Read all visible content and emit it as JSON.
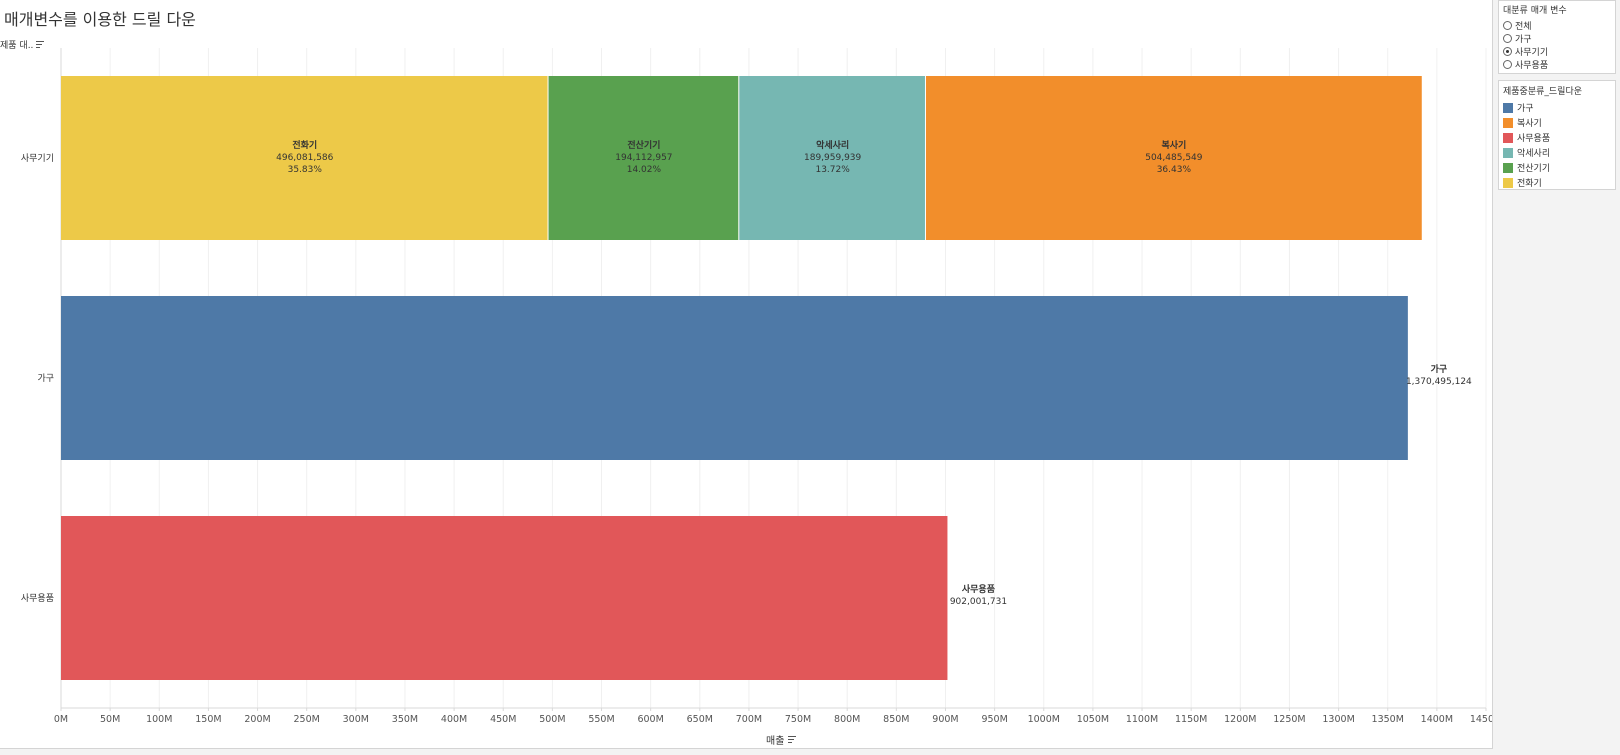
{
  "title": "매개변수를 이용한 드릴 다운",
  "row_header": "제품 대..",
  "x_axis_title": "매출",
  "parameter": {
    "title": "대분류 매개 변수",
    "options": [
      {
        "label": "전체",
        "checked": false
      },
      {
        "label": "가구",
        "checked": false
      },
      {
        "label": "사무기기",
        "checked": true
      },
      {
        "label": "사무용품",
        "checked": false
      }
    ]
  },
  "legend": {
    "title": "제품중분류_드릴다운",
    "items": [
      {
        "label": "가구",
        "color": "#4e79a7"
      },
      {
        "label": "복사기",
        "color": "#f28e2b"
      },
      {
        "label": "사무용품",
        "color": "#e15759"
      },
      {
        "label": "악세사리",
        "color": "#76b7b2"
      },
      {
        "label": "전산기기",
        "color": "#59a14f"
      },
      {
        "label": "전화기",
        "color": "#edc948"
      }
    ]
  },
  "chart_data": {
    "type": "bar",
    "orientation": "horizontal",
    "stacked": true,
    "title": "매개변수를 이용한 드릴 다운",
    "xlabel": "매출",
    "ylabel": "제품 대..",
    "xlim": [
      0,
      1450000000
    ],
    "x_ticks": [
      "0M",
      "50M",
      "100M",
      "150M",
      "200M",
      "250M",
      "300M",
      "350M",
      "400M",
      "450M",
      "500M",
      "550M",
      "600M",
      "650M",
      "700M",
      "750M",
      "800M",
      "850M",
      "900M",
      "950M",
      "1000M",
      "1050M",
      "1100M",
      "1150M",
      "1200M",
      "1250M",
      "1300M",
      "1350M",
      "1400M",
      "1450M"
    ],
    "grid": "vertical",
    "categories": [
      "사무기기",
      "가구",
      "사무용품"
    ],
    "rows": [
      {
        "category": "사무기기",
        "segments": [
          {
            "name": "전화기",
            "value": 496081586,
            "label": "496,081,586",
            "pct": "35.83%",
            "color": "#edc948"
          },
          {
            "name": "전산기기",
            "value": 194112957,
            "label": "194,112,957",
            "pct": "14.02%",
            "color": "#59a14f"
          },
          {
            "name": "악세사리",
            "value": 189959939,
            "label": "189,959,939",
            "pct": "13.72%",
            "color": "#76b7b2"
          },
          {
            "name": "복사기",
            "value": 504485549,
            "label": "504,485,549",
            "pct": "36.43%",
            "color": "#f28e2b"
          }
        ]
      },
      {
        "category": "가구",
        "segments": [
          {
            "name": "가구",
            "value": 1370495124,
            "label": "1,370,495,124",
            "color": "#4e79a7"
          }
        ]
      },
      {
        "category": "사무용품",
        "segments": [
          {
            "name": "사무용품",
            "value": 902001731,
            "label": "902,001,731",
            "color": "#e15759"
          }
        ]
      }
    ]
  }
}
